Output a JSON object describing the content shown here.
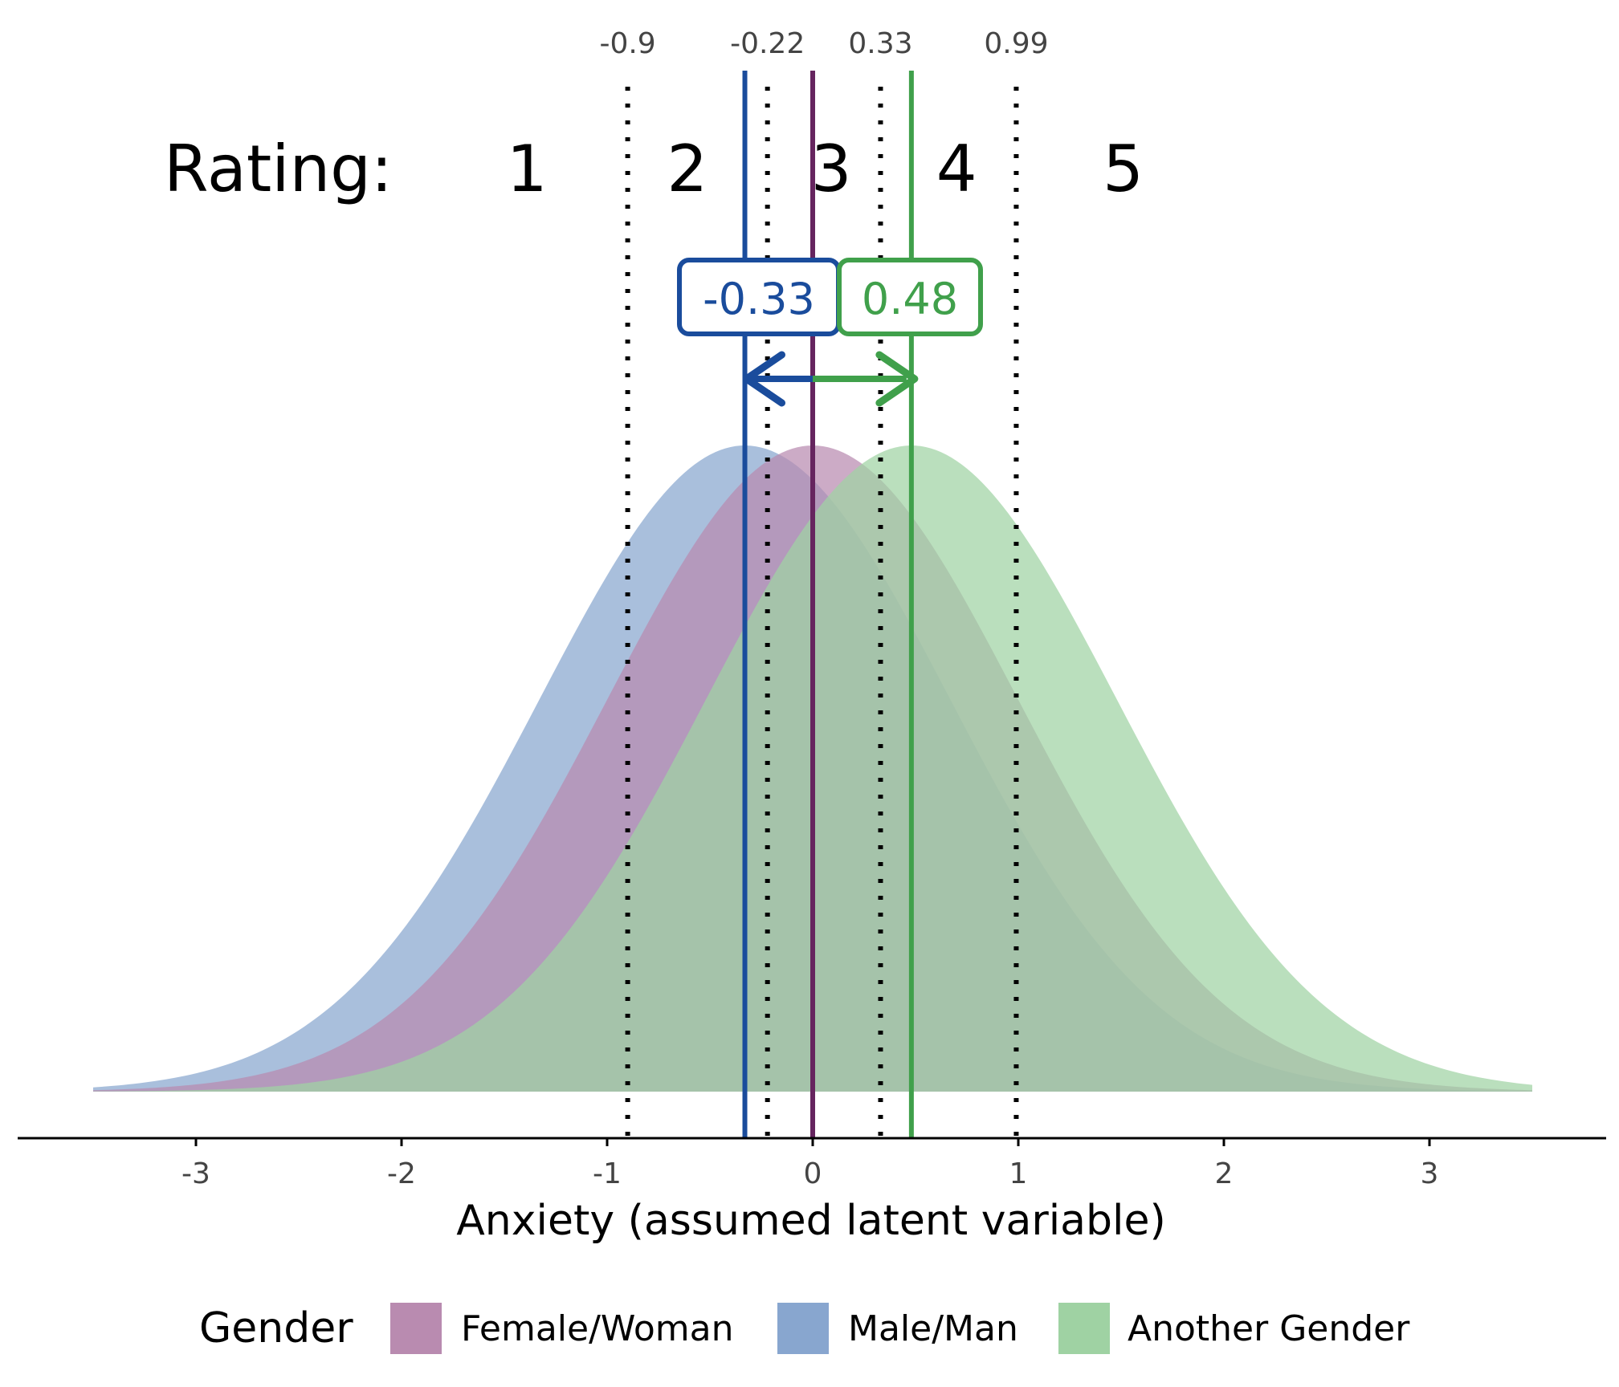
{
  "chart_data": {
    "type": "area",
    "xlabel": "Anxiety (assumed latent variable)",
    "xlim": [
      -3.5,
      3.5
    ],
    "x_ticks": [
      -3,
      -2,
      -1,
      0,
      1,
      2,
      3
    ],
    "x_tick_labels": [
      "-3",
      "-2",
      "-1",
      "0",
      "1",
      "2",
      "3"
    ],
    "grid": false,
    "distribution": "normal",
    "sd": 1,
    "series": [
      {
        "name": "Female/Woman",
        "mean": 0,
        "color": "#b98bb0"
      },
      {
        "name": "Male/Man",
        "mean": -0.33,
        "color": "#88a6cf"
      },
      {
        "name": "Another Gender",
        "mean": 0.48,
        "color": "#9fd2a3"
      }
    ],
    "mean_lines": [
      {
        "group": "Male/Man",
        "x": -0.33,
        "color": "#1a4c9c"
      },
      {
        "group": "Female/Woman",
        "x": 0,
        "color": "#66255f"
      },
      {
        "group": "Another Gender",
        "x": 0.48,
        "color": "#40a04b"
      }
    ],
    "thresholds": [
      -0.9,
      -0.22,
      0.33,
      0.99
    ],
    "threshold_labels": [
      "-0.9",
      "-0.22",
      "0.33",
      "0.99"
    ],
    "rating": {
      "label": "Rating:",
      "categories": [
        "1",
        "2",
        "3",
        "4",
        "5"
      ]
    },
    "annotations": [
      {
        "text": "-0.33",
        "color": "#1a4c9c",
        "x": -0.33
      },
      {
        "text": "0.48",
        "color": "#40a04b",
        "x": 0.48
      }
    ],
    "legend": {
      "title": "Gender",
      "position": "bottom",
      "entries": [
        "Female/Woman",
        "Male/Man",
        "Another Gender"
      ]
    }
  }
}
